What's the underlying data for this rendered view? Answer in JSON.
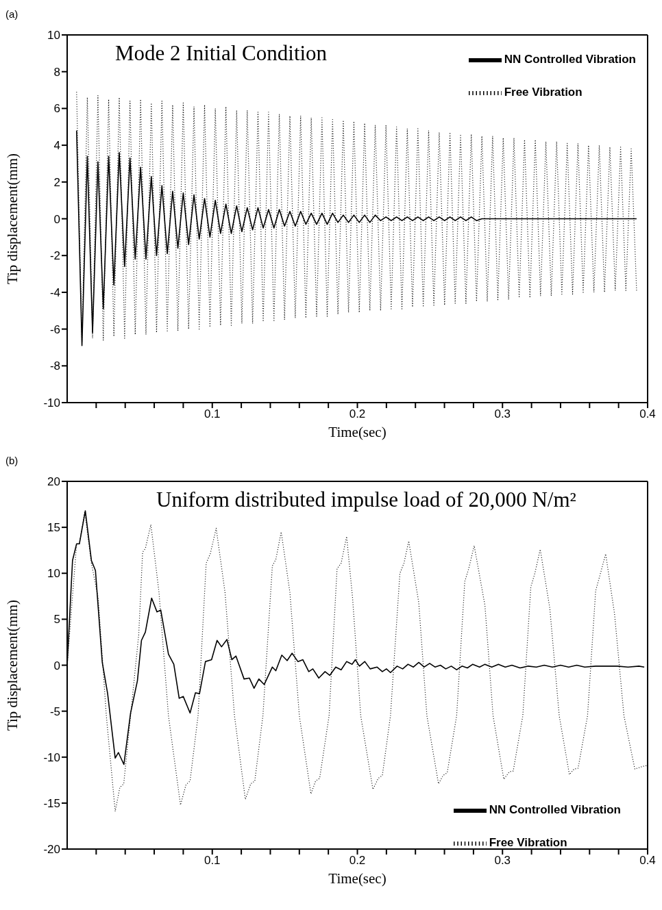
{
  "chart_data": [
    {
      "type": "line",
      "title": "Mode 2 Initial Condition",
      "xlabel": "Time(sec)",
      "ylabel": "Tip displacement(mm)",
      "annotations": [
        "(a)"
      ],
      "legend": "top right",
      "xlim": [
        0,
        0.4
      ],
      "ylim": [
        -10,
        10
      ],
      "xticks": [
        {
          "value": 0.02,
          "label": null
        },
        {
          "value": 0.04,
          "label": null
        },
        {
          "value": 0.06,
          "label": null
        },
        {
          "value": 0.08,
          "label": null
        },
        0.1,
        {
          "value": 0.12,
          "label": null
        },
        {
          "value": 0.14,
          "label": null
        },
        {
          "value": 0.16,
          "label": null
        },
        {
          "value": 0.18,
          "label": null
        },
        0.2,
        {
          "value": 0.22,
          "label": null
        },
        {
          "value": 0.24,
          "label": null
        },
        {
          "value": 0.26,
          "label": null
        },
        {
          "value": 0.28,
          "label": null
        },
        0.3,
        {
          "value": 0.32,
          "label": null
        },
        {
          "value": 0.34,
          "label": null
        },
        {
          "value": 0.36,
          "label": null
        },
        {
          "value": 0.38,
          "label": null
        },
        0.4
      ],
      "yticks": [
        -10,
        -8,
        -6,
        -4,
        -2,
        0,
        2,
        4,
        6,
        8,
        10
      ],
      "x": [
        0.0065,
        0.0102,
        0.0139,
        0.0175,
        0.0212,
        0.0249,
        0.0286,
        0.0322,
        0.0359,
        0.0396,
        0.0433,
        0.0469,
        0.0506,
        0.0543,
        0.058,
        0.0616,
        0.0653,
        0.069,
        0.0727,
        0.0763,
        0.08,
        0.0837,
        0.0874,
        0.091,
        0.0947,
        0.0984,
        0.1021,
        0.1057,
        0.1094,
        0.1131,
        0.1168,
        0.1204,
        0.1241,
        0.1278,
        0.1315,
        0.1351,
        0.1388,
        0.1425,
        0.1462,
        0.1498,
        0.1535,
        0.1572,
        0.1609,
        0.1645,
        0.1682,
        0.1719,
        0.1756,
        0.1792,
        0.1829,
        0.1866,
        0.1903,
        0.1939,
        0.1976,
        0.2013,
        0.205,
        0.2086,
        0.2123,
        0.216,
        0.2197,
        0.2233,
        0.227,
        0.2307,
        0.2344,
        0.238,
        0.2417,
        0.2454,
        0.2491,
        0.2527,
        0.2564,
        0.2601,
        0.2638,
        0.2674,
        0.2711,
        0.2748,
        0.2785,
        0.2821,
        0.2858,
        0.2895,
        0.2932,
        0.2968,
        0.3005,
        0.3042,
        0.3079,
        0.3115,
        0.3152,
        0.3189,
        0.3226,
        0.3262,
        0.3299,
        0.3336,
        0.3373,
        0.3409,
        0.3446,
        0.3483,
        0.352,
        0.3556,
        0.3593,
        0.363,
        0.3667,
        0.3703,
        0.374,
        0.3777,
        0.3814,
        0.385,
        0.3887,
        0.3924
      ],
      "series": [
        {
          "name": "NN Controlled Vibration",
          "color": "#000000",
          "line_style": "solid",
          "values": [
            4.8,
            -6.9,
            3.4,
            -6.2,
            3.1,
            -4.9,
            3.4,
            -3.6,
            3.6,
            -2.6,
            3.3,
            -2.2,
            2.8,
            -2.2,
            2.3,
            -2.0,
            1.8,
            -1.9,
            1.5,
            -1.6,
            1.4,
            -1.4,
            1.3,
            -1.1,
            1.1,
            -1.0,
            1.0,
            -0.8,
            0.8,
            -0.8,
            0.7,
            -0.7,
            0.6,
            -0.6,
            0.6,
            -0.5,
            0.5,
            -0.5,
            0.5,
            -0.4,
            0.4,
            -0.4,
            0.4,
            -0.3,
            0.3,
            -0.3,
            0.3,
            -0.3,
            0.3,
            -0.2,
            0.2,
            -0.2,
            0.2,
            -0.2,
            0.2,
            -0.2,
            0.2,
            -0.1,
            0.1,
            -0.1,
            0.1,
            -0.1,
            0.1,
            -0.1,
            0.1,
            -0.1,
            0.1,
            -0.1,
            0.1,
            -0.1,
            0.1,
            -0.1,
            0.1,
            -0.1,
            0.1,
            -0.1,
            0,
            0,
            0,
            0,
            0,
            0,
            0,
            0,
            0,
            0,
            0,
            0,
            0,
            0,
            0,
            0,
            0,
            0,
            0,
            0,
            0,
            0,
            0,
            0,
            0,
            0,
            0,
            0,
            0,
            0
          ]
        },
        {
          "name": "Free Vibration",
          "color": "#000000",
          "line_style": "dotted",
          "values": [
            6.9,
            -6.7,
            6.6,
            -6.5,
            6.7,
            -6.6,
            6.5,
            -6.4,
            6.6,
            -6.5,
            6.4,
            -6.3,
            6.5,
            -6.3,
            6.3,
            -6.2,
            6.4,
            -6.1,
            6.2,
            -6.1,
            6.3,
            -6.0,
            6.1,
            -6.0,
            6.2,
            -5.9,
            6.0,
            -5.8,
            6.1,
            -5.8,
            5.9,
            -5.7,
            5.9,
            -5.7,
            5.8,
            -5.6,
            5.8,
            -5.6,
            5.7,
            -5.5,
            5.6,
            -5.4,
            5.6,
            -5.4,
            5.5,
            -5.3,
            5.5,
            -5.3,
            5.4,
            -5.2,
            5.3,
            -5.1,
            5.3,
            -5.1,
            5.2,
            -5.0,
            5.1,
            -5.0,
            5.1,
            -4.9,
            5.0,
            -4.9,
            4.9,
            -4.8,
            4.9,
            -4.8,
            4.8,
            -4.7,
            4.7,
            -4.7,
            4.7,
            -4.6,
            4.6,
            -4.6,
            4.6,
            -4.5,
            4.5,
            -4.5,
            4.5,
            -4.4,
            4.4,
            -4.4,
            4.4,
            -4.3,
            4.3,
            -4.3,
            4.3,
            -4.2,
            4.2,
            -4.2,
            4.2,
            -4.1,
            4.1,
            -4.1,
            4.1,
            -4.0,
            4.0,
            -4.0,
            4.0,
            -4.0,
            3.9,
            -3.9,
            3.9,
            -3.9,
            3.8,
            -3.9
          ]
        }
      ]
    },
    {
      "type": "line",
      "title": "Uniform distributed impulse load of 20,000 N/m²",
      "xlabel": "Time(sec)",
      "ylabel": "Tip displacement(mm)",
      "annotations": [
        "(b)"
      ],
      "legend": "bottom right",
      "xlim": [
        0,
        0.4
      ],
      "ylim": [
        -20,
        20
      ],
      "xticks": [
        {
          "value": 0.02,
          "label": null
        },
        {
          "value": 0.04,
          "label": null
        },
        {
          "value": 0.06,
          "label": null
        },
        {
          "value": 0.08,
          "label": null
        },
        0.1,
        {
          "value": 0.12,
          "label": null
        },
        {
          "value": 0.14,
          "label": null
        },
        {
          "value": 0.16,
          "label": null
        },
        {
          "value": 0.18,
          "label": null
        },
        0.2,
        {
          "value": 0.22,
          "label": null
        },
        {
          "value": 0.24,
          "label": null
        },
        {
          "value": 0.26,
          "label": null
        },
        {
          "value": 0.28,
          "label": null
        },
        0.3,
        {
          "value": 0.32,
          "label": null
        },
        {
          "value": 0.34,
          "label": null
        },
        {
          "value": 0.36,
          "label": null
        },
        {
          "value": 0.38,
          "label": null
        },
        0.4
      ],
      "yticks": [
        -20,
        -15,
        -10,
        -5,
        0,
        5,
        10,
        15,
        20
      ],
      "series": [
        {
          "name": "NN Controlled Vibration",
          "color": "#000000",
          "line_style": "solid",
          "x": [
            0,
            0.0037,
            0.0065,
            0.0084,
            0.0125,
            0.0167,
            0.0195,
            0.0242,
            0.0279,
            0.0331,
            0.0353,
            0.0391,
            0.0437,
            0.0484,
            0.0512,
            0.0539,
            0.0582,
            0.0619,
            0.0645,
            0.0698,
            0.0735,
            0.0772,
            0.08,
            0.0847,
            0.0884,
            0.0912,
            0.0953,
            0.0995,
            0.1033,
            0.1064,
            0.1101,
            0.1135,
            0.1163,
            0.1219,
            0.1256,
            0.1288,
            0.1321,
            0.1358,
            0.1414,
            0.1438,
            0.1479,
            0.1516,
            0.155,
            0.159,
            0.1624,
            0.1665,
            0.1693,
            0.1734,
            0.1777,
            0.181,
            0.1851,
            0.1888,
            0.1926,
            0.1963,
            0.1986,
            0.2014,
            0.2051,
            0.2088,
            0.2135,
            0.2172,
            0.22,
            0.2228,
            0.2274,
            0.2312,
            0.2349,
            0.2386,
            0.2423,
            0.246,
            0.2498,
            0.2535,
            0.2572,
            0.2609,
            0.2647,
            0.2684,
            0.2721,
            0.2758,
            0.2795,
            0.2842,
            0.2879,
            0.2926,
            0.2972,
            0.3019,
            0.3065,
            0.3121,
            0.3177,
            0.3233,
            0.3288,
            0.3344,
            0.34,
            0.3456,
            0.3512,
            0.3567,
            0.3642,
            0.3716,
            0.3791,
            0.3865,
            0.394,
            0.3977
          ],
          "values": [
            0,
            11.4,
            13.2,
            13.2,
            16.8,
            11.4,
            10.3,
            0.3,
            -3.1,
            -10.1,
            -9.5,
            -10.8,
            -5.2,
            -1.7,
            2.7,
            3.6,
            7.3,
            5.8,
            6.0,
            1.2,
            0.1,
            -3.6,
            -3.4,
            -5.2,
            -3.0,
            -3.1,
            0.4,
            0.6,
            2.7,
            2.0,
            2.8,
            0.6,
            1.0,
            -1.5,
            -1.4,
            -2.5,
            -1.5,
            -2.1,
            -0.2,
            -0.6,
            1.1,
            0.5,
            1.3,
            0.4,
            0.6,
            -0.7,
            -0.4,
            -1.4,
            -0.7,
            -1.1,
            -0.2,
            -0.5,
            0.4,
            0.1,
            0.6,
            -0.1,
            0.4,
            -0.4,
            -0.2,
            -0.7,
            -0.4,
            -0.8,
            -0.1,
            -0.4,
            0.1,
            -0.2,
            0.3,
            -0.2,
            0.2,
            -0.2,
            0.0,
            -0.4,
            -0.1,
            -0.5,
            -0.1,
            -0.3,
            0.1,
            -0.2,
            0.1,
            -0.2,
            0.1,
            -0.2,
            0.0,
            -0.3,
            -0.1,
            -0.2,
            0.0,
            -0.2,
            0.0,
            -0.2,
            0.0,
            -0.2,
            -0.1,
            -0.1,
            -0.1,
            -0.2,
            -0.1,
            -0.2
          ]
        },
        {
          "name": "Free Vibration",
          "color": "#000000",
          "line_style": "dotted",
          "x": [
            0,
            0.0065,
            0.0084,
            0.0121,
            0.0167,
            0.0214,
            0.027,
            0.0331,
            0.0363,
            0.039,
            0.0437,
            0.0493,
            0.052,
            0.0539,
            0.0577,
            0.0633,
            0.0698,
            0.0781,
            0.0819,
            0.0847,
            0.0902,
            0.0958,
            0.0986,
            0.1027,
            0.1088,
            0.1153,
            0.1228,
            0.1265,
            0.1293,
            0.1349,
            0.1414,
            0.1438,
            0.1475,
            0.1535,
            0.16,
            0.168,
            0.1712,
            0.174,
            0.1805,
            0.186,
            0.1888,
            0.1926,
            0.1967,
            0.2023,
            0.2107,
            0.2144,
            0.2172,
            0.2228,
            0.2293,
            0.2321,
            0.2354,
            0.2423,
            0.2479,
            0.2559,
            0.259,
            0.2619,
            0.2684,
            0.274,
            0.2767,
            0.2805,
            0.2879,
            0.2935,
            0.3009,
            0.3047,
            0.3074,
            0.314,
            0.3195,
            0.3223,
            0.326,
            0.3326,
            0.3391,
            0.3461,
            0.3493,
            0.3521,
            0.3586,
            0.3642,
            0.367,
            0.3711,
            0.3772,
            0.3837,
            0.3912,
            0.3967,
            0.4
          ],
          "values": [
            0,
            13.2,
            13.2,
            16.7,
            11.1,
            7.3,
            -5.5,
            -15.9,
            -13.3,
            -12.9,
            -5.5,
            3.3,
            12.3,
            12.7,
            15.3,
            7.9,
            -5.5,
            -15.2,
            -13.0,
            -12.6,
            -5.5,
            11.1,
            12.1,
            14.9,
            7.9,
            -5.5,
            -14.6,
            -12.9,
            -12.6,
            -5.5,
            10.8,
            11.5,
            14.5,
            7.9,
            -5.5,
            -14.0,
            -12.6,
            -12.3,
            -5.5,
            10.5,
            11.1,
            14.0,
            7.3,
            -5.5,
            -13.5,
            -12.3,
            -12.0,
            -5.5,
            10.0,
            11.1,
            13.5,
            6.8,
            -5.5,
            -12.9,
            -12.0,
            -11.7,
            -5.5,
            9.1,
            10.5,
            13.0,
            6.5,
            -5.5,
            -12.4,
            -11.6,
            -11.5,
            -5.5,
            8.5,
            10.0,
            12.6,
            6.2,
            -5.5,
            -11.9,
            -11.3,
            -11.2,
            -5.5,
            8.1,
            9.7,
            12.1,
            5.6,
            -5.5,
            -11.3,
            -11.0,
            -10.9
          ]
        }
      ]
    }
  ]
}
